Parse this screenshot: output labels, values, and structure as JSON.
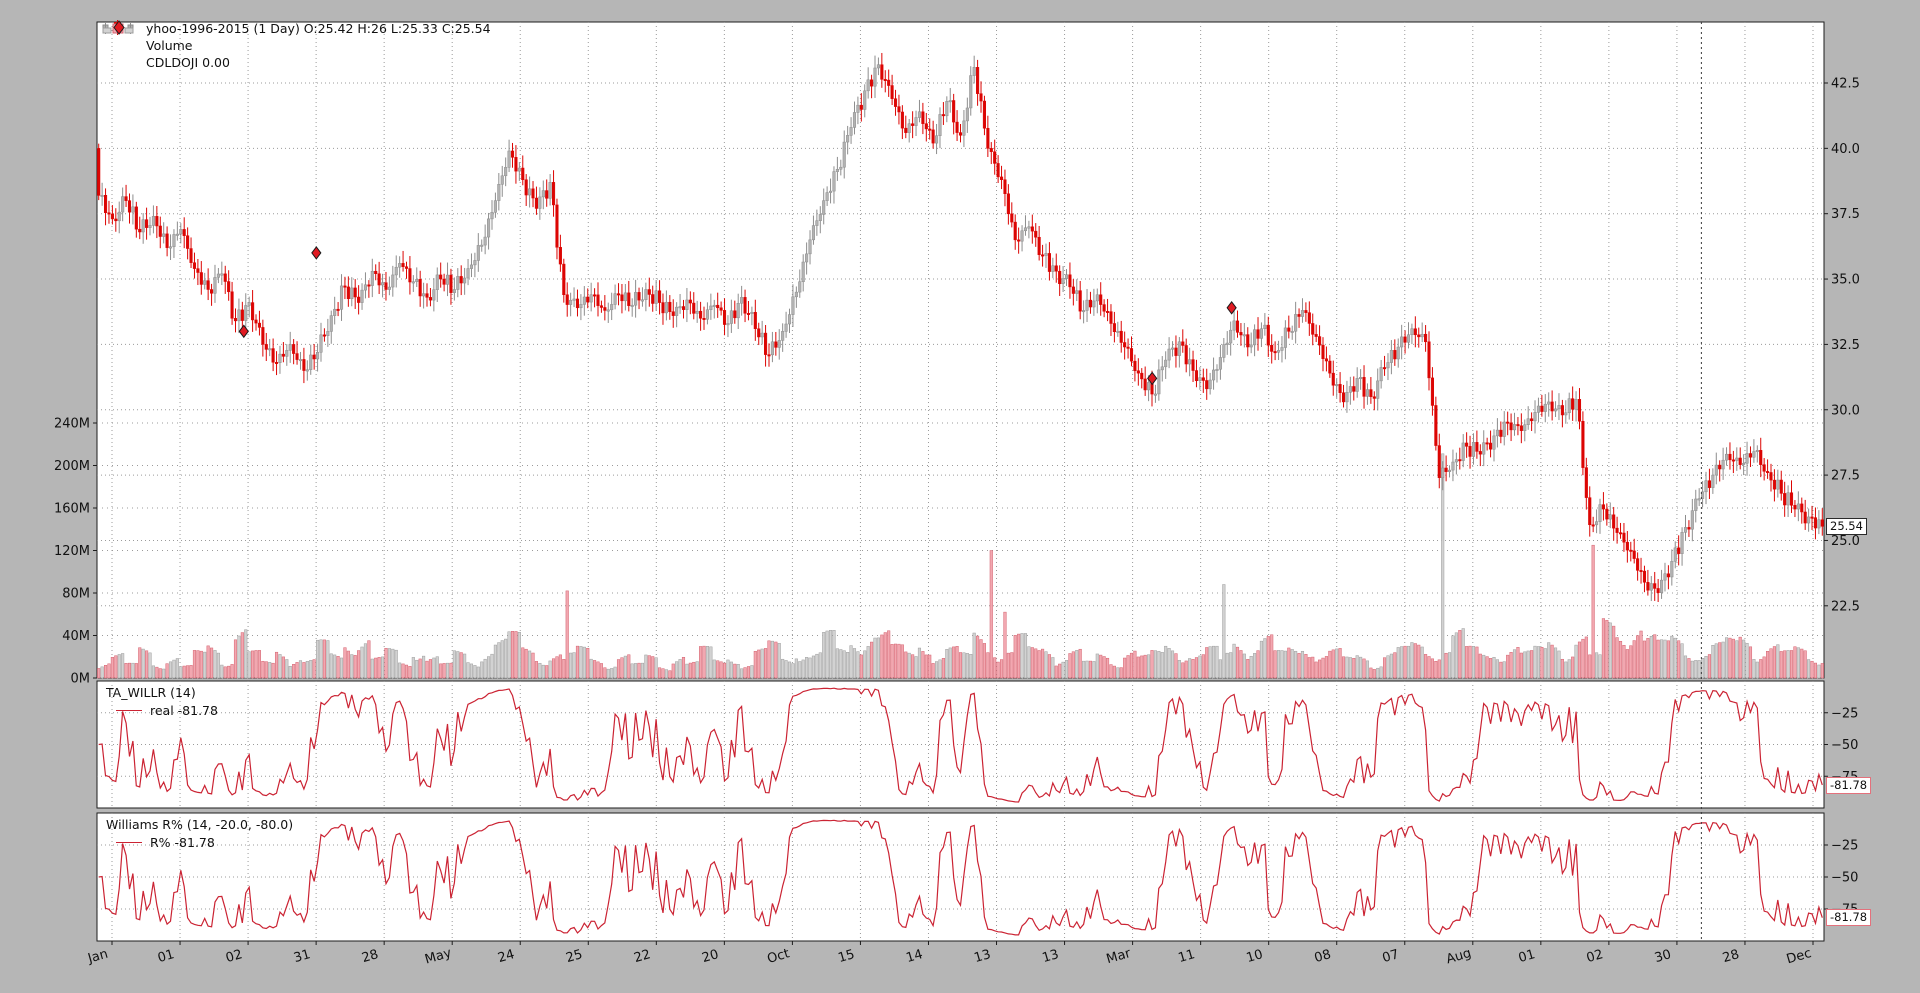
{
  "legend": {
    "main": "yhoo-1996-2015 (1 Day) O:25.42 H:26 L:25.33 C:25.54",
    "volume": "Volume",
    "cdldoji": "CDLDOJI 0.00"
  },
  "panels": {
    "willr": {
      "title": "TA_WILLR (14)",
      "series_label": "real -81.78"
    },
    "williams": {
      "title": "Williams R% (14, -20.0, -80.0)",
      "series_label": "R% -81.78"
    }
  },
  "badges": {
    "price": "25.54",
    "willr": "-81.78",
    "williams": "-81.78"
  },
  "axes": {
    "price_tick_labels": [
      "42.5",
      "40.0",
      "37.5",
      "35.0",
      "32.5",
      "30.0",
      "27.5",
      "25.0",
      "22.5"
    ],
    "price_tick_values": [
      42.5,
      40,
      37.5,
      35,
      32.5,
      30,
      27.5,
      25,
      22.5
    ],
    "volume_tick_labels": [
      "240M",
      "200M",
      "160M",
      "120M",
      "80M",
      "40M",
      "0M"
    ],
    "volume_tick_values": [
      240,
      200,
      160,
      120,
      80,
      40,
      0
    ],
    "indicator_tick_labels": [
      "−25",
      "−50",
      "−75"
    ],
    "indicator_tick_values": [
      -25,
      -50,
      -75
    ],
    "x_ticks": [
      "Jan",
      "01",
      "02",
      "31",
      "28",
      "May",
      "24",
      "25",
      "22",
      "20",
      "Oct",
      "15",
      "14",
      "13",
      "13",
      "Mar",
      "11",
      "10",
      "08",
      "07",
      "Aug",
      "01",
      "02",
      "30",
      "28",
      "Dec"
    ]
  },
  "colors": {
    "background": "#b6b6b6",
    "plot_bg": "#ffffff",
    "grid": "#9b9b9b",
    "crosshair": "#3a3a3a",
    "down": "#dc0503",
    "up_fill": "#b2b2b2",
    "up_edge": "#8d8d8d",
    "vol_down_fill": "#f2a7b0",
    "vol_down_edge": "#d4616e",
    "vol_up_fill": "#d2d2d2",
    "vol_up_edge": "#9d9d9d",
    "indicator_line": "#cb2333",
    "doji_marker": "#e01a22"
  },
  "chart_data": {
    "type": "candlestick+volume+oscillator",
    "title": "yhoo-1996-2015 (1 Day)",
    "last_ohlc": {
      "open": 25.42,
      "high": 26,
      "low": 25.33,
      "close": 25.54
    },
    "price_axis_range": [
      19.7,
      44.8
    ],
    "volume_axis_range_m": [
      0,
      250
    ],
    "oscillator": {
      "name": "TA_WILLR",
      "period": 14,
      "overbought": -20.0,
      "oversold": -80.0,
      "last_value": -81.78
    },
    "first_open": 40.0,
    "closes": [
      38.2,
      37.3,
      38.0,
      36.8,
      37.4,
      36.2,
      36.9,
      35.4,
      34.6,
      35.2,
      33.4,
      34.1,
      32.5,
      31.8,
      32.5,
      31.5,
      32.2,
      33.6,
      34.7,
      34.1,
      35.3,
      34.6,
      35.6,
      34.9,
      34.3,
      35.0,
      34.6,
      35.4,
      36.3,
      38.0,
      39.9,
      38.8,
      37.7,
      38.7,
      34.4,
      33.9,
      34.4,
      33.8,
      34.4,
      34.0,
      34.6,
      34.1,
      33.6,
      34.2,
      33.5,
      34.0,
      33.3,
      34.3,
      33.1,
      32.1,
      33.0,
      34.5,
      36.5,
      38.0,
      39.2,
      40.8,
      42.2,
      43.2,
      41.9,
      40.6,
      41.4,
      40.2,
      41.8,
      40.5,
      43.1,
      40.0,
      38.8,
      36.5,
      37.0,
      35.9,
      35.3,
      34.7,
      33.8,
      34.4,
      33.3,
      32.4,
      31.4,
      30.6,
      31.9,
      32.6,
      31.5,
      30.8,
      32.0,
      33.4,
      32.4,
      33.1,
      32.2,
      33.0,
      33.8,
      32.8,
      31.4,
      30.3,
      31.2,
      30.5,
      31.6,
      32.4,
      33.1,
      32.6,
      27.4,
      28.0,
      28.6,
      28.3,
      29.0,
      29.5,
      29.2,
      29.9,
      30.3,
      29.8,
      30.4,
      25.6,
      26.2,
      25.3,
      24.6,
      23.4,
      23.0,
      24.2,
      25.5,
      26.6,
      27.5,
      28.3,
      27.9,
      28.4,
      27.6,
      26.8,
      26.2,
      25.9,
      25.54
    ],
    "volumes_m": [
      18,
      24,
      14,
      30,
      16,
      22,
      12,
      26,
      34,
      20,
      50,
      26,
      16,
      30,
      22,
      18,
      36,
      24,
      40,
      42,
      20,
      28,
      16,
      32,
      22,
      14,
      26,
      18,
      30,
      38,
      44,
      30,
      22,
      26,
      82,
      30,
      20,
      16,
      24,
      14,
      22,
      12,
      26,
      16,
      30,
      18,
      24,
      14,
      28,
      35,
      20,
      30,
      26,
      45,
      28,
      38,
      50,
      46,
      32,
      26,
      40,
      22,
      30,
      24,
      48,
      120,
      62,
      42,
      30,
      34,
      22,
      28,
      16,
      24,
      18,
      30,
      22,
      26,
      34,
      28,
      24,
      30,
      88,
      40,
      34,
      42,
      26,
      30,
      36,
      24,
      28,
      20,
      24,
      16,
      26,
      30,
      34,
      28,
      211,
      48,
      30,
      24,
      28,
      34,
      26,
      30,
      38,
      30,
      42,
      125,
      57,
      48,
      58,
      42,
      36,
      42,
      30,
      26,
      34,
      38,
      44,
      30,
      34,
      26,
      30,
      22,
      26
    ],
    "doji_markers": [
      {
        "t": 0.085,
        "price": 33.0
      },
      {
        "t": 0.127,
        "price": 36.0
      },
      {
        "t": 0.611,
        "price": 31.2
      },
      {
        "t": 0.657,
        "price": 33.9
      }
    ],
    "crosshair_t": 0.929
  }
}
